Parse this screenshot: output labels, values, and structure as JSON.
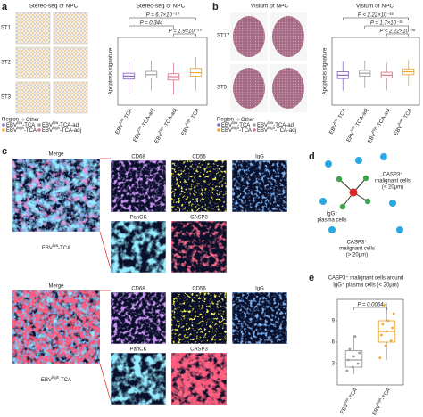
{
  "panels": {
    "a": {
      "label": "a",
      "maps_title": "Stereo-seq of NPC",
      "rows": [
        "ST1",
        "ST2",
        "ST3"
      ],
      "legend": {
        "title": "Region",
        "items": [
          {
            "text": {
              "base": "Other"
            },
            "color": "#cfcfcf"
          },
          {
            "text": {
              "base": "EBV",
              "sup": "low",
              "rest": "-TCA"
            },
            "color": "#8b6cc2"
          },
          {
            "text": {
              "base": "EBV",
              "sup": "low",
              "rest": "-TCA-adj"
            },
            "color": "#a0a0a0"
          },
          {
            "text": {
              "base": "EBV",
              "sup": "high",
              "rest": "-TCA"
            },
            "color": "#f0a830"
          },
          {
            "text": {
              "base": "EBV",
              "sup": "high",
              "rest": "-TCA-adj"
            },
            "color": "#d67a8c"
          }
        ]
      },
      "box": {
        "title": "Stereo-seq of NPC",
        "ylabel": "Apoptosis signature",
        "ylim": [
          -0.6,
          0.8
        ],
        "pvalues": [
          "P = 6.7×10⁻¹⁰",
          "P = 0.344",
          "P = 1.9×10⁻¹⁰"
        ],
        "groups": [
          {
            "label": {
              "base": "EBV",
              "sup": "low",
              "rest": "-TCA"
            },
            "color": "#8b6cc2",
            "min": -0.35,
            "q1": -0.06,
            "median": 0,
            "q3": 0.06,
            "max": 0.28
          },
          {
            "label": {
              "base": "EBV",
              "sup": "low",
              "rest": "-TCA-adj"
            },
            "color": "#a0a0a0",
            "min": -0.3,
            "q1": -0.04,
            "median": 0.03,
            "q3": 0.1,
            "max": 0.32
          },
          {
            "label": {
              "base": "EBV",
              "sup": "high",
              "rest": "-TCA-adj"
            },
            "color": "#d67a8c",
            "min": -0.38,
            "q1": -0.08,
            "median": -0.01,
            "q3": 0.05,
            "max": 0.27
          },
          {
            "label": {
              "base": "EBV",
              "sup": "high",
              "rest": "-TCA"
            },
            "color": "#f0a830",
            "min": -0.3,
            "q1": 0,
            "median": 0.07,
            "q3": 0.16,
            "max": 0.4
          }
        ]
      }
    },
    "b": {
      "label": "b",
      "maps_title": "Visium of NPC",
      "rows": [
        "ST17",
        "ST5"
      ],
      "legend": {
        "title": "Region",
        "items": [
          {
            "text": {
              "base": "Other"
            },
            "color": "#cfcfcf"
          },
          {
            "text": {
              "base": "EBV",
              "sup": "low",
              "rest": "-TCA"
            },
            "color": "#8b6cc2"
          },
          {
            "text": {
              "base": "EBV",
              "sup": "low",
              "rest": "-TCA-adj"
            },
            "color": "#a0a0a0"
          },
          {
            "text": {
              "base": "EBV",
              "sup": "high",
              "rest": "-TCA"
            },
            "color": "#f0a830"
          },
          {
            "text": {
              "base": "EBV",
              "sup": "high",
              "rest": "-TCA-adj"
            },
            "color": "#d67a8c"
          }
        ]
      },
      "box": {
        "title": "Visium of NPC",
        "ylabel": "Apoptosis signature",
        "ylim": [
          -0.6,
          0.8
        ],
        "pvalues": [
          "P < 2.22×10⁻¹⁶",
          "P = 1.7×10⁻¹⁵",
          "P < 2.22×10⁻¹⁶"
        ],
        "groups": [
          {
            "label": {
              "base": "EBV",
              "sup": "low",
              "rest": "-TCA"
            },
            "color": "#8b6cc2",
            "min": -0.3,
            "q1": -0.05,
            "median": 0.02,
            "q3": 0.09,
            "max": 0.3
          },
          {
            "label": {
              "base": "EBV",
              "sup": "low",
              "rest": "-TCA-adj"
            },
            "color": "#a0a0a0",
            "min": -0.25,
            "q1": 0,
            "median": 0.06,
            "q3": 0.12,
            "max": 0.32
          },
          {
            "label": {
              "base": "EBV",
              "sup": "high",
              "rest": "-TCA-adj"
            },
            "color": "#d67a8c",
            "min": -0.3,
            "q1": -0.04,
            "median": 0.02,
            "q3": 0.08,
            "max": 0.28
          },
          {
            "label": {
              "base": "EBV",
              "sup": "high",
              "rest": "-TCA"
            },
            "color": "#f0a830",
            "min": -0.2,
            "q1": 0.03,
            "median": 0.09,
            "q3": 0.15,
            "max": 0.35
          }
        ]
      }
    },
    "c": {
      "label": "c",
      "conditions": [
        {
          "name": {
            "base": "EBV",
            "sup": "low",
            "rest": "-TCA"
          },
          "merge": "Merge",
          "channels": [
            "CD68",
            "CD56",
            "IgG",
            "PanCK",
            "CASP3"
          ]
        },
        {
          "name": {
            "base": "EBV",
            "sup": "high",
            "rest": "-TCA"
          },
          "merge": "Merge",
          "channels": [
            "CD68",
            "CD56",
            "IgG",
            "PanCK",
            "CASP3"
          ]
        }
      ]
    },
    "d": {
      "label": "d",
      "green": [
        "CASP3⁺",
        "malignant cells",
        "(< 20μm)"
      ],
      "red": [
        "IgG⁺",
        "plasma cells"
      ],
      "blue": [
        "CASP3⁺",
        "malignant cells",
        "(> 20μm)"
      ]
    },
    "e": {
      "label": "e",
      "title": [
        "CASP3⁺ malignant cells around",
        "IgG⁺ plasma cells (< 20μm)"
      ],
      "pvalue": "P = 0.0064",
      "ylim": [
        0,
        12
      ],
      "yticks": [
        3,
        6,
        9
      ],
      "groups": [
        {
          "label": {
            "base": "EBV",
            "sup": "low",
            "rest": "-TCA"
          },
          "color": "#9a9a9a",
          "min": 1.5,
          "q1": 2.5,
          "median": 3.5,
          "q3": 4.8,
          "max": 7,
          "points": [
            2,
            2.5,
            3,
            3.5,
            4,
            4.5,
            5,
            6.8
          ]
        },
        {
          "label": {
            "base": "EBV",
            "sup": "high",
            "rest": "-TCA"
          },
          "color": "#f0a830",
          "min": 3.5,
          "q1": 6,
          "median": 7.5,
          "q3": 9,
          "max": 11.5,
          "points": [
            3.8,
            5.5,
            6.2,
            7,
            7.5,
            8,
            8.5,
            9,
            10,
            11.2
          ]
        }
      ]
    }
  }
}
